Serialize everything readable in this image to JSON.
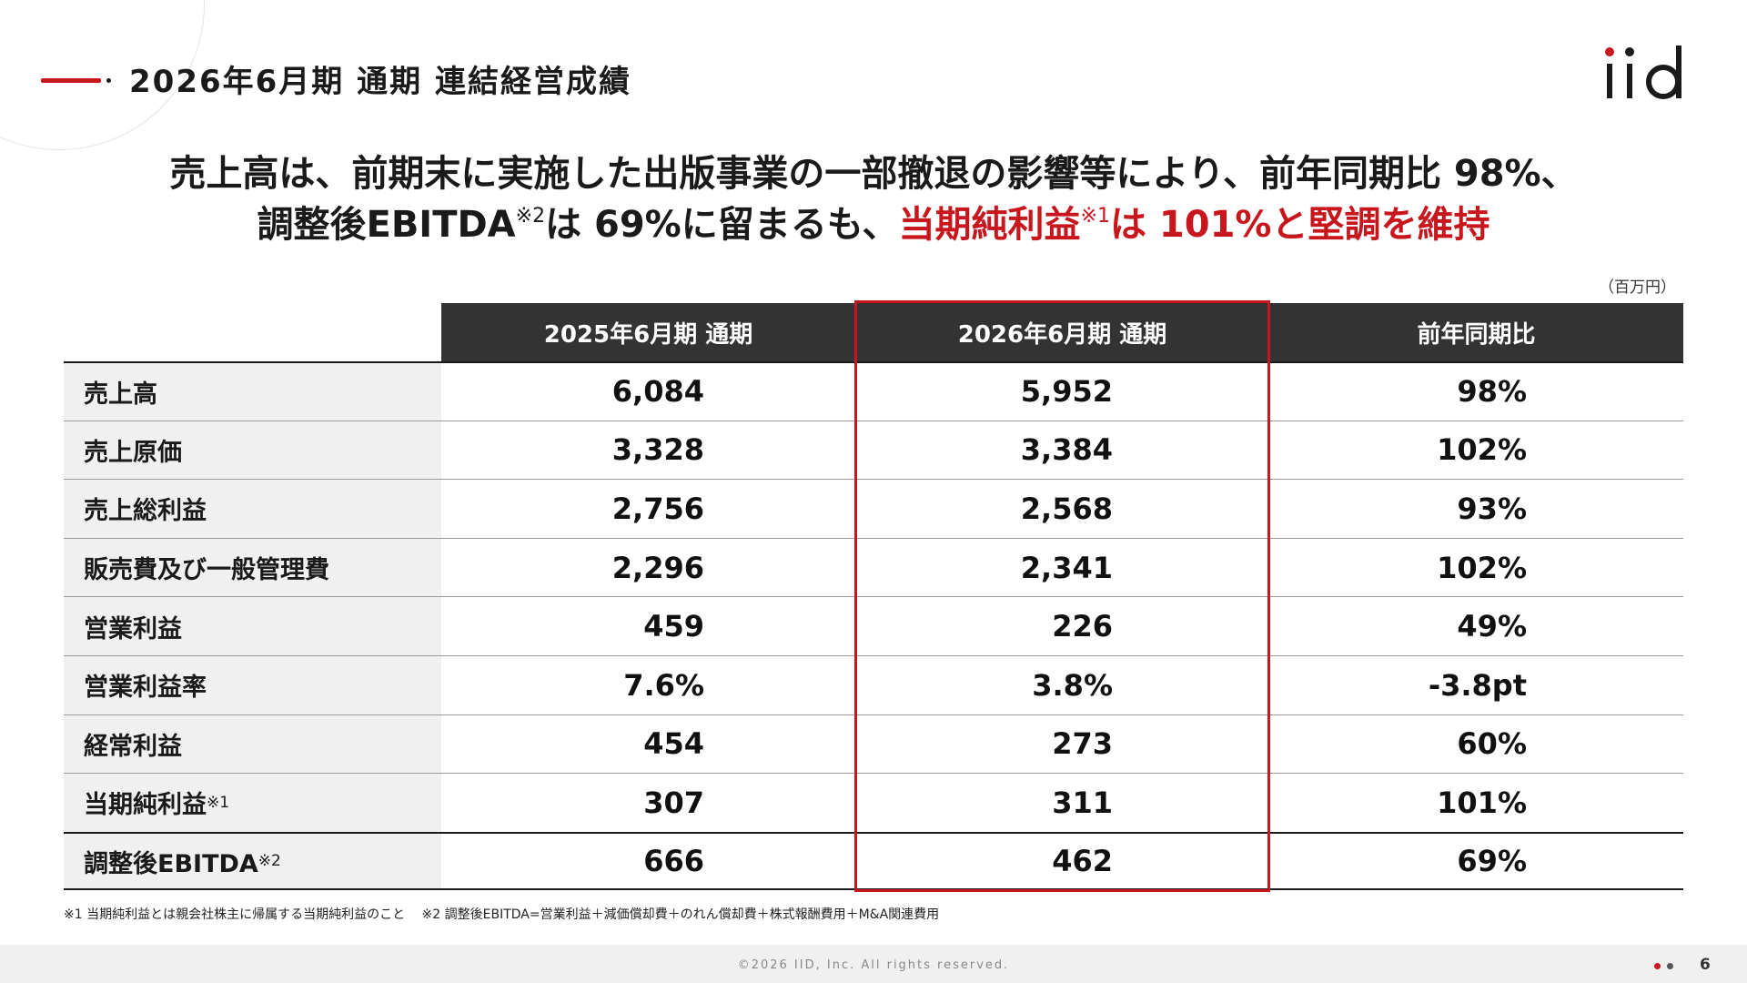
{
  "header": {
    "title": "2026年6月期 通期 連結経営成績"
  },
  "logo": {
    "text": "iid",
    "accent_color": "#c8161d"
  },
  "headline": {
    "line1": "売上高は、前期末に実施した出版事業の一部撤退の影響等により、前年同期比 98%、",
    "line2_black_a": "調整後EBITDA",
    "line2_sup_a": "※2",
    "line2_black_b": "は 69%に留まるも、",
    "line2_red_a": "当期純利益",
    "line2_sup_b": "※1",
    "line2_red_b": "は 101%と堅調を維持"
  },
  "table": {
    "unit": "（百万円）",
    "columns": [
      "2025年6月期 通期",
      "2026年6月期 通期",
      "前年同期比"
    ],
    "rows": [
      {
        "label": "売上高",
        "sup": "",
        "prev": "6,084",
        "curr": "5,952",
        "ratio": "98%"
      },
      {
        "label": "売上原価",
        "sup": "",
        "prev": "3,328",
        "curr": "3,384",
        "ratio": "102%"
      },
      {
        "label": "売上総利益",
        "sup": "",
        "prev": "2,756",
        "curr": "2,568",
        "ratio": "93%"
      },
      {
        "label": "販売費及び一般管理費",
        "sup": "",
        "prev": "2,296",
        "curr": "2,341",
        "ratio": "102%"
      },
      {
        "label": "営業利益",
        "sup": "",
        "prev": "459",
        "curr": "226",
        "ratio": "49%"
      },
      {
        "label": "営業利益率",
        "sup": "",
        "prev": "7.6%",
        "curr": "3.8%",
        "ratio": "-3.8pt"
      },
      {
        "label": "経常利益",
        "sup": "",
        "prev": "454",
        "curr": "273",
        "ratio": "60%"
      },
      {
        "label": "当期純利益",
        "sup": "※1",
        "prev": "307",
        "curr": "311",
        "ratio": "101%"
      },
      {
        "label": "調整後EBITDA",
        "sup": "※2",
        "prev": "666",
        "curr": "462",
        "ratio": "69%"
      }
    ]
  },
  "footnote": "※1 当期純利益とは親会社株主に帰属する当期純利益のこと　 ※2 調整後EBITDA=営業利益＋減価償却費＋のれん償却費＋株式報酬費用＋M&A関連費用",
  "footer": {
    "copyright": "©2026 IID, Inc.  All rights reserved.",
    "page": "6"
  },
  "colors": {
    "accent": "#c8161d",
    "header_bg": "#333333",
    "label_bg": "#f0f0f0"
  }
}
